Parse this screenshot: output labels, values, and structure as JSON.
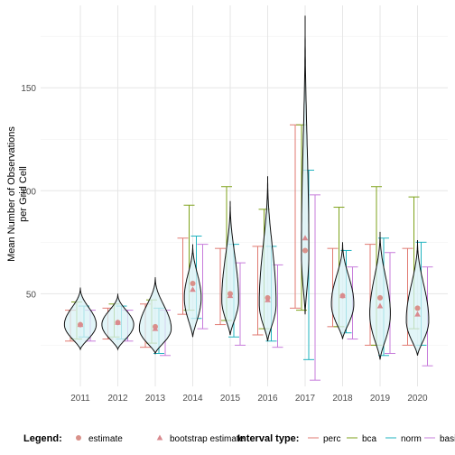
{
  "chart_data": {
    "type": "violin",
    "title": "",
    "xlabel": "",
    "ylabel_lines": [
      "Mean Number of Observations",
      "per Grid Cell"
    ],
    "categories": [
      "2011",
      "2012",
      "2013",
      "2014",
      "2015",
      "2016",
      "2017",
      "2018",
      "2019",
      "2020"
    ],
    "ylim": [
      5,
      190
    ],
    "yticks": [
      50,
      100,
      150
    ],
    "grid": true,
    "legend_position": "bottom",
    "legend": {
      "legend_title": "Legend:",
      "interval_title": "Interval type:",
      "markers": [
        {
          "name": "estimate",
          "shape": "circle"
        },
        {
          "name": "bootstrap estimate",
          "shape": "triangle"
        }
      ],
      "intervals": [
        {
          "name": "perc"
        },
        {
          "name": "bca"
        },
        {
          "name": "norm"
        },
        {
          "name": "basic"
        }
      ]
    },
    "colors": {
      "perc": "#e07a72",
      "bca": "#7ea21a",
      "norm": "#1fb3bf",
      "basic": "#c77cdb",
      "violin_fill": "#d8f1f6",
      "estimate": "#d9918a",
      "bootstrap": "#d98a8f"
    },
    "violins": [
      {
        "min": 23,
        "max": 53,
        "mode": 35,
        "width": 0.85
      },
      {
        "min": 23,
        "max": 50,
        "mode": 35,
        "width": 0.85
      },
      {
        "min": 21,
        "max": 58,
        "mode": 33,
        "width": 0.85
      },
      {
        "min": 29,
        "max": 74,
        "mode": 48,
        "width": 0.45
      },
      {
        "min": 30,
        "max": 95,
        "mode": 47,
        "width": 0.45
      },
      {
        "min": 27,
        "max": 107,
        "mode": 45,
        "width": 0.45
      },
      {
        "min": 40,
        "max": 185,
        "mode": 70,
        "width": 0.2
      },
      {
        "min": 28,
        "max": 75,
        "mode": 45,
        "width": 0.6
      },
      {
        "min": 18,
        "max": 80,
        "mode": 40,
        "width": 0.55
      },
      {
        "min": 20,
        "max": 76,
        "mode": 37,
        "width": 0.6
      }
    ],
    "intervals": {
      "perc": [
        [
          27,
          42
        ],
        [
          28,
          43
        ],
        [
          24,
          45
        ],
        [
          40,
          77
        ],
        [
          35,
          72
        ],
        [
          30,
          73
        ],
        [
          43,
          132
        ],
        [
          34,
          72
        ],
        [
          25,
          74
        ],
        [
          25,
          72
        ]
      ],
      "bca": [
        [
          28,
          46
        ],
        [
          29,
          45
        ],
        [
          26,
          47
        ],
        [
          42,
          93
        ],
        [
          37,
          102
        ],
        [
          33,
          91
        ],
        [
          42,
          132
        ],
        [
          34,
          92
        ],
        [
          25,
          102
        ],
        [
          33,
          97
        ]
      ],
      "norm": [
        [
          29,
          44
        ],
        [
          28,
          44
        ],
        [
          21,
          43
        ],
        [
          38,
          78
        ],
        [
          29,
          74
        ],
        [
          27,
          73
        ],
        [
          18,
          110
        ],
        [
          31,
          71
        ],
        [
          20,
          77
        ],
        [
          25,
          75
        ]
      ],
      "basic": [
        [
          27,
          42
        ],
        [
          27,
          42
        ],
        [
          20,
          42
        ],
        [
          33,
          74
        ],
        [
          25,
          65
        ],
        [
          24,
          64
        ],
        [
          8,
          98
        ],
        [
          28,
          63
        ],
        [
          21,
          70
        ],
        [
          15,
          63
        ]
      ]
    },
    "estimate": [
      35,
      36,
      34,
      55,
      50,
      48,
      71,
      49,
      48,
      43
    ],
    "bootstrap": [
      35,
      36,
      33,
      52,
      49,
      47,
      77,
      49,
      44,
      40
    ]
  }
}
